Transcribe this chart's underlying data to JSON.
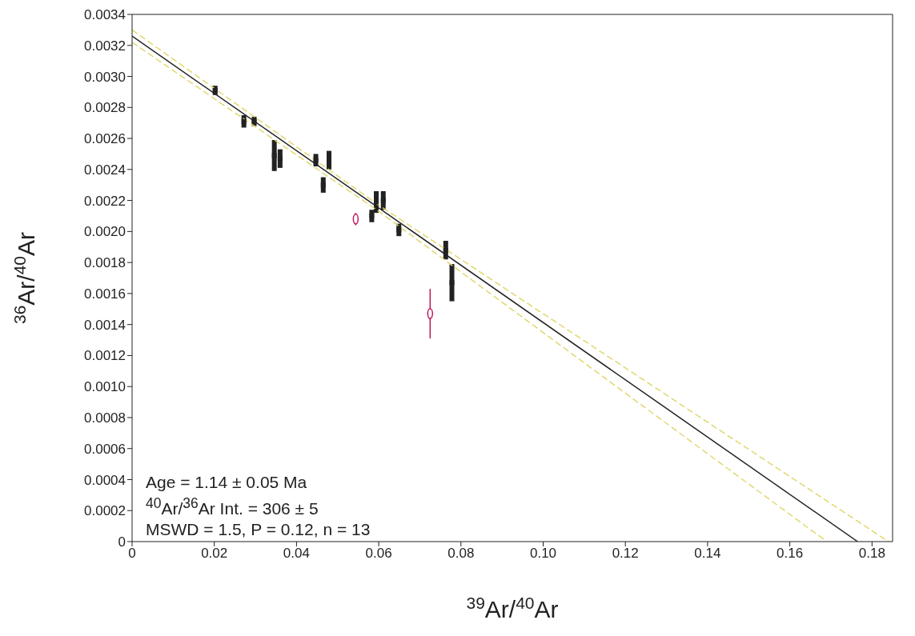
{
  "chart_data": {
    "type": "scatter",
    "xlabel": "$^{39}$Ar/$^{40}$Ar",
    "ylabel": "$^{36}$Ar/$^{40}$Ar",
    "xlim": [
      0,
      0.185
    ],
    "ylim": [
      0,
      0.0034
    ],
    "xticks": [
      0,
      {
        "value": 0.02,
        "label": "0.02"
      },
      {
        "value": 0.04,
        "label": "0.04"
      },
      {
        "value": 0.06,
        "label": "0.06"
      },
      {
        "value": 0.08,
        "label": "0.08"
      },
      {
        "value": 0.1,
        "label": "0.10"
      },
      {
        "value": 0.12,
        "label": "0.12"
      },
      {
        "value": 0.14,
        "label": "0.14"
      },
      {
        "value": 0.16,
        "label": "0.16"
      },
      {
        "value": 0.18,
        "label": "0.18"
      }
    ],
    "yticks": [
      0,
      {
        "value": 0.0002,
        "label": "0.0002"
      },
      {
        "value": 0.0004,
        "label": "0.0004"
      },
      {
        "value": 0.0006,
        "label": "0.0006"
      },
      {
        "value": 0.0008,
        "label": "0.0008"
      },
      {
        "value": 0.001,
        "label": "0.0010"
      },
      {
        "value": 0.0012,
        "label": "0.0012"
      },
      {
        "value": 0.0014,
        "label": "0.0014"
      },
      {
        "value": 0.0016,
        "label": "0.0016"
      },
      {
        "value": 0.0018,
        "label": "0.0018"
      },
      {
        "value": 0.002,
        "label": "0.0020"
      },
      {
        "value": 0.0022,
        "label": "0.0022"
      },
      {
        "value": 0.0024,
        "label": "0.0024"
      },
      {
        "value": 0.0026,
        "label": "0.0026"
      },
      {
        "value": 0.0028,
        "label": "0.0028"
      },
      {
        "value": 0.003,
        "label": "0.0030"
      },
      {
        "value": 0.0032,
        "label": "0.0032"
      },
      {
        "value": 0.0034,
        "label": "0.0034"
      }
    ],
    "series": [
      {
        "color": "#222222",
        "marker": "square",
        "x": [
          0.0202,
          0.0272,
          0.0297,
          0.0346,
          0.036,
          0.0447,
          0.0479,
          0.0465,
          0.0583,
          0.0594,
          0.0611,
          0.0649,
          0.0763,
          0.0778
        ],
        "values": [
          0.00291,
          0.00271,
          0.00271,
          0.00249,
          0.00247,
          0.00246,
          0.00246,
          0.0023,
          0.0021,
          0.00219,
          0.0022,
          0.00201,
          0.00188,
          0.00167
        ],
        "errors": [
          3e-05,
          4e-05,
          3e-05,
          0.0001,
          6e-05,
          4e-05,
          6e-05,
          5e-05,
          4e-05,
          7e-05,
          6e-05,
          4e-05,
          6e-05,
          0.00012
        ]
      },
      {
        "type": "scatter",
        "color": "#c0185a",
        "marker": "circle",
        "x": [
          0.0544,
          0.0725
        ],
        "values": [
          0.00208,
          0.00147
        ],
        "errors": [
          4e-05,
          0.00016
        ]
      },
      {
        "type": "line",
        "color": "#e0d870",
        "line_style": "dashed",
        "x": [
          0,
          0.06,
          0.184
        ],
        "values": [
          0.0033,
          0.00217,
          0
        ]
      },
      {
        "type": "line",
        "color": "#e0d870",
        "line_style": "dashed",
        "x": [
          0,
          0.06,
          0.169
        ],
        "values": [
          0.00322,
          0.00213,
          0
        ]
      },
      {
        "type": "line",
        "color": "#222222",
        "line_style": "solid",
        "x": [
          0,
          0.1765
        ],
        "values": [
          0.00326,
          0
        ]
      }
    ],
    "annotations": [
      "Age =  1.14 ± 0.05 Ma",
      "$^{40}$Ar/$^{36}$Ar Int. =  306 ± 5",
      "MSWD = 1.5, P = 0.12, n = 13"
    ]
  }
}
